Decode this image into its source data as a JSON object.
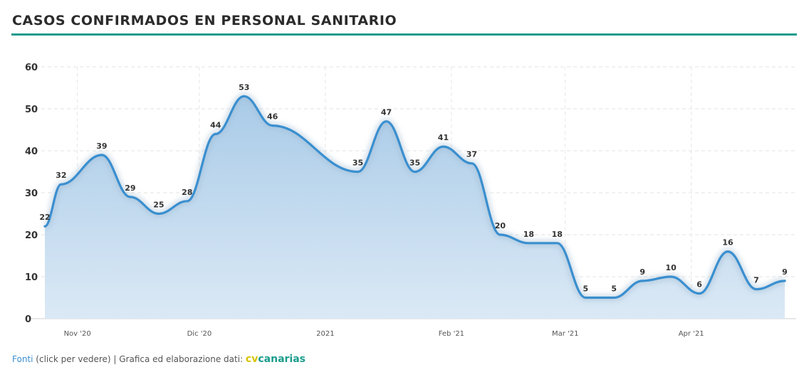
{
  "header": {
    "title": "CASOS CONFIRMADOS EN PERSONAL SANITARIO"
  },
  "footer": {
    "sources_link": "Fonti",
    "sources_hint": " (click per vedere) | Grafica ed elaborazione dati: ",
    "brand_cv": "cv",
    "brand_rest": "canarias"
  },
  "colors": {
    "accent": "#1a9c8c",
    "line": "#3a8fcf",
    "fill": "#bcd8ee",
    "brand_yellow": "#d8c400"
  },
  "chart_data": {
    "type": "area",
    "title": "CASOS CONFIRMADOS EN PERSONAL SANITARIO",
    "xlabel": "",
    "ylabel": "",
    "x": [
      "2020-10-24",
      "2020-10-28",
      "2020-11-07",
      "2020-11-14",
      "2020-11-21",
      "2020-11-28",
      "2020-12-05",
      "2020-12-12",
      "2020-12-19",
      "2021-01-09",
      "2021-01-16",
      "2021-01-23",
      "2021-01-30",
      "2021-02-06",
      "2021-02-13",
      "2021-02-20",
      "2021-02-27",
      "2021-03-06",
      "2021-03-13",
      "2021-03-20",
      "2021-03-27",
      "2021-04-03",
      "2021-04-10",
      "2021-04-17",
      "2021-04-24"
    ],
    "series": [
      {
        "values": [
          22,
          32,
          39,
          29,
          25,
          28,
          44,
          53,
          46,
          35,
          47,
          35,
          41,
          37,
          20,
          18,
          18,
          5,
          5,
          9,
          10,
          6,
          16,
          7,
          9
        ]
      }
    ],
    "ylim": [
      0,
      60
    ],
    "yticks": [
      "0",
      "10",
      "20",
      "30",
      "40",
      "50",
      "60"
    ],
    "xticks": [
      {
        "date": "2020-11-01",
        "label": "Nov '20"
      },
      {
        "date": "2020-12-01",
        "label": "Dic '20"
      },
      {
        "date": "2021-01-01",
        "label": "2021"
      },
      {
        "date": "2021-02-01",
        "label": "Feb '21"
      },
      {
        "date": "2021-03-01",
        "label": "Mar '21"
      },
      {
        "date": "2021-04-01",
        "label": "Apr '21"
      }
    ],
    "grid": true,
    "legend": "none"
  }
}
